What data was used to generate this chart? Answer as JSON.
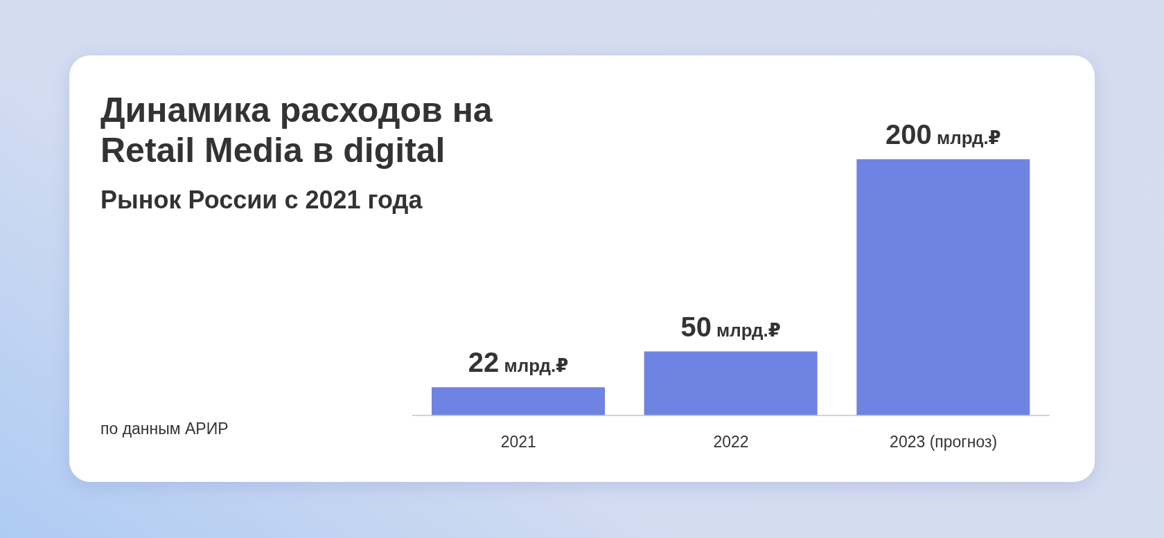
{
  "chart_data": {
    "type": "bar",
    "title": "Динамика расходов на Retail Media в digital",
    "subtitle": "Рынок России с 2021 года",
    "categories": [
      "2021",
      "2022",
      "2023 (прогноз)"
    ],
    "values": [
      22,
      50,
      200
    ],
    "color": "#6f83e3",
    "value_labels": [
      "22 млрд.₽",
      "50 млрд.₽",
      "200 млрд.₽"
    ],
    "annotations": [
      "по данным АРИР"
    ]
  }
}
